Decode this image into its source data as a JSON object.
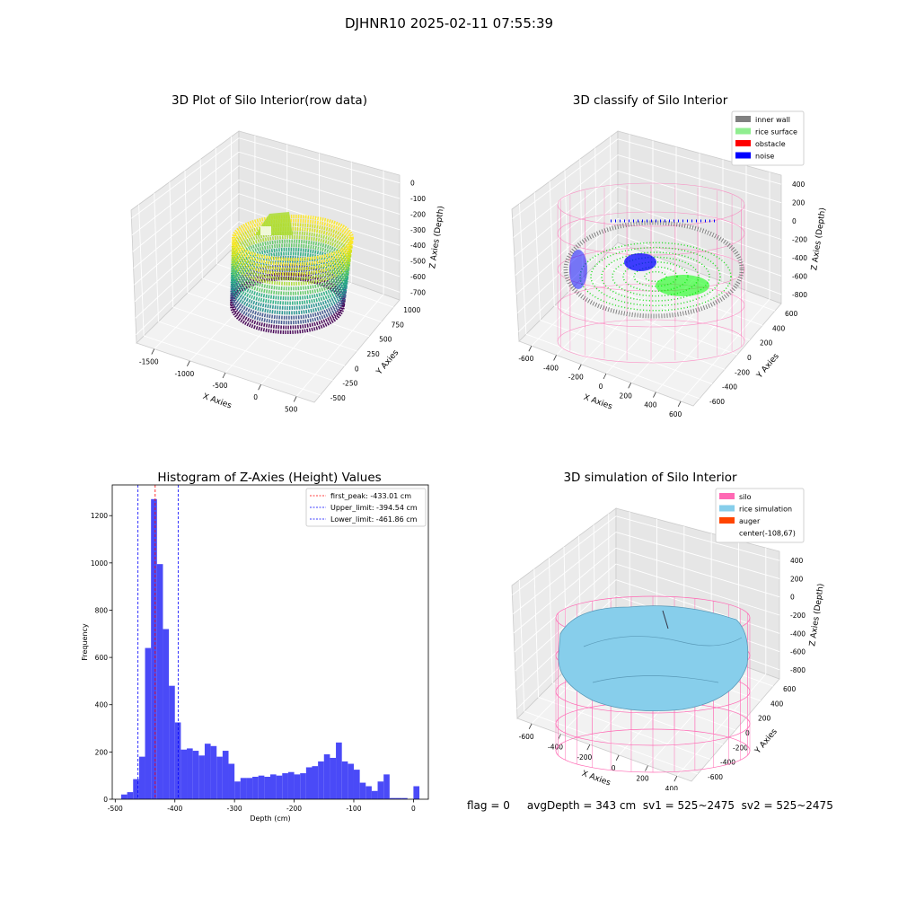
{
  "suptitle": "DJHNR10 2025-02-11 07:55:39",
  "footer": "flag = 0     avgDepth = 343 cm  sv1 = 525~2475  sv2 = 525~2475",
  "colors": {
    "wall": "#808080",
    "rice": "#90ee90",
    "obstacle": "#ff0000",
    "noise": "#0000ff",
    "silo": "#ff69b4",
    "rice_sim": "#87ceeb",
    "auger": "#ff4500",
    "hist": "#4a4af7"
  },
  "chart_data": [
    {
      "type": "scatter",
      "subtype": "3d",
      "title": "3D Plot of Silo Interior(row data)",
      "xlabel": "X Axies",
      "ylabel": "Y Axies",
      "zlabel": "Z Axies (Depth)",
      "x_ticks": [
        "-1500",
        "-1000",
        "-500",
        "0",
        "500"
      ],
      "y_ticks": [
        "-500",
        "-250",
        "0",
        "250",
        "500",
        "750",
        "1000"
      ],
      "z_ticks": [
        "0",
        "-100",
        "-200",
        "-300",
        "-400",
        "-500",
        "-600",
        "-700"
      ],
      "colormap": "viridis"
    },
    {
      "type": "scatter",
      "subtype": "3d",
      "title": "3D classify of Silo Interior",
      "xlabel": "X Axies",
      "ylabel": "Y Axies",
      "zlabel": "Z Axies (Depth)",
      "x_ticks": [
        "-600",
        "-400",
        "-200",
        "0",
        "200",
        "400",
        "600"
      ],
      "y_ticks": [
        "-600",
        "-400",
        "-200",
        "0",
        "200",
        "400",
        "600"
      ],
      "z_ticks": [
        "400",
        "200",
        "0",
        "-200",
        "-400",
        "-600",
        "-800"
      ],
      "legend": [
        "inner wall",
        "rice surface",
        "obstacle",
        "noise"
      ],
      "legend_position": "top-right"
    },
    {
      "type": "bar",
      "subtype": "histogram",
      "title": "Histogram of Z-Axies (Height) Values",
      "xlabel": "Depth (cm)",
      "ylabel": "Frequency",
      "xlim": [
        -505,
        25
      ],
      "ylim": [
        0,
        1330
      ],
      "x_ticks": [
        -500,
        -400,
        -300,
        -200,
        -100,
        0
      ],
      "y_ticks": [
        0,
        200,
        400,
        600,
        800,
        1000,
        1200
      ],
      "bin_width": 10,
      "bins": [
        [
          -490,
          20
        ],
        [
          -480,
          30
        ],
        [
          -470,
          85
        ],
        [
          -460,
          180
        ],
        [
          -450,
          640
        ],
        [
          -440,
          1270
        ],
        [
          -430,
          995
        ],
        [
          -420,
          720
        ],
        [
          -410,
          480
        ],
        [
          -400,
          325
        ],
        [
          -390,
          210
        ],
        [
          -380,
          215
        ],
        [
          -370,
          205
        ],
        [
          -360,
          185
        ],
        [
          -350,
          235
        ],
        [
          -340,
          225
        ],
        [
          -330,
          180
        ],
        [
          -320,
          205
        ],
        [
          -310,
          150
        ],
        [
          -300,
          75
        ],
        [
          -290,
          90
        ],
        [
          -280,
          90
        ],
        [
          -270,
          95
        ],
        [
          -260,
          100
        ],
        [
          -250,
          95
        ],
        [
          -240,
          105
        ],
        [
          -230,
          100
        ],
        [
          -220,
          110
        ],
        [
          -210,
          115
        ],
        [
          -200,
          105
        ],
        [
          -190,
          110
        ],
        [
          -180,
          135
        ],
        [
          -170,
          140
        ],
        [
          -160,
          160
        ],
        [
          -150,
          190
        ],
        [
          -140,
          175
        ],
        [
          -130,
          240
        ],
        [
          -120,
          160
        ],
        [
          -110,
          150
        ],
        [
          -100,
          125
        ],
        [
          -90,
          70
        ],
        [
          -80,
          55
        ],
        [
          -70,
          35
        ],
        [
          -60,
          75
        ],
        [
          -50,
          105
        ],
        [
          -40,
          5
        ],
        [
          -30,
          5
        ],
        [
          -20,
          5
        ],
        [
          -10,
          0
        ],
        [
          0,
          55
        ]
      ],
      "vlines": [
        {
          "label": "first_peak: -433.01 cm",
          "x": -433.01,
          "color": "#ff0000"
        },
        {
          "label": "Upper_limit: -394.54 cm",
          "x": -394.54,
          "color": "#0000ff"
        },
        {
          "label": "Lower_limit: -461.86 cm",
          "x": -461.86,
          "color": "#0000ff"
        }
      ],
      "legend_position": "top-right"
    },
    {
      "type": "area",
      "subtype": "3d surface",
      "title": "3D simulation of Silo Interior",
      "xlabel": "X Axies",
      "ylabel": "Y Axies",
      "zlabel": "Z Axies (Depth)",
      "x_ticks": [
        "-600",
        "-400",
        "-200",
        "0",
        "200",
        "400"
      ],
      "y_ticks": [
        "-600",
        "-400",
        "-200",
        "0",
        "200",
        "400",
        "600"
      ],
      "z_ticks": [
        "400",
        "200",
        "0",
        "-200",
        "-400",
        "-600",
        "-800"
      ],
      "legend": [
        "silo",
        "rice simulation",
        "auger",
        "center(-108,67)"
      ],
      "legend_position": "top-right"
    }
  ]
}
